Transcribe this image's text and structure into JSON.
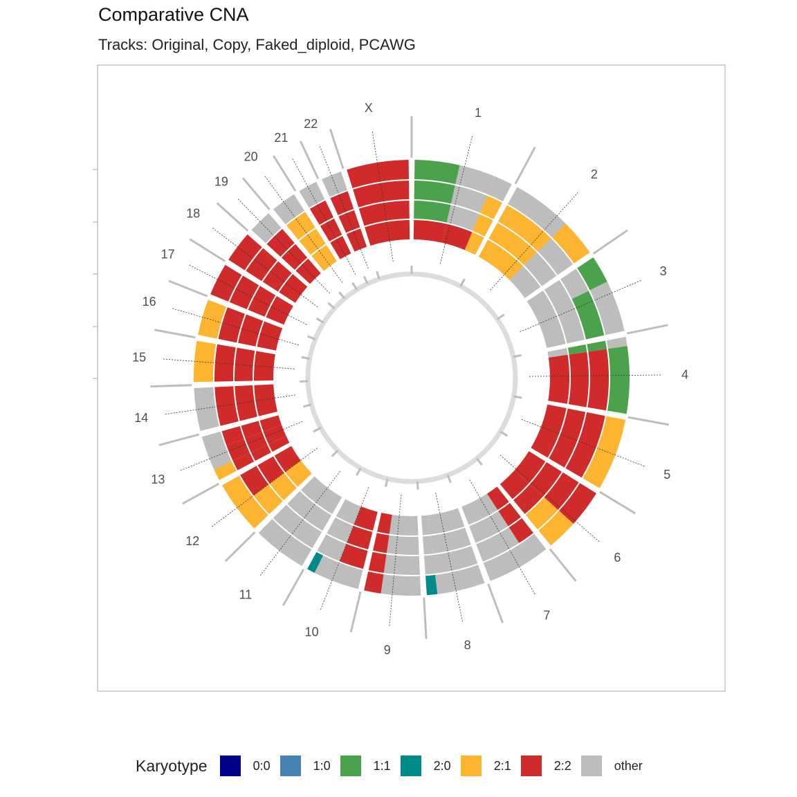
{
  "chart_data": {
    "type": "circos",
    "title": "Comparative CNA",
    "subtitle": "Tracks: Original, Copy, Faked_diploid, PCAWG",
    "tracks": [
      "Original",
      "Copy",
      "Faked_diploid",
      "PCAWG"
    ],
    "legend": {
      "title": "Karyotype",
      "position": "bottom",
      "entries": [
        {
          "label": "0:0",
          "color": "#00008B"
        },
        {
          "label": "1:0",
          "color": "#4682B4"
        },
        {
          "label": "1:1",
          "color": "#4CA24C"
        },
        {
          "label": "2:0",
          "color": "#008B8B"
        },
        {
          "label": "2:1",
          "color": "#FCB431"
        },
        {
          "label": "2:2",
          "color": "#D02B2B"
        },
        {
          "label": "other",
          "color": "#BDBDBD"
        }
      ]
    },
    "chromosomes": [
      {
        "name": "1",
        "length": 249.0,
        "segments": [
          {
            "start": 0,
            "end": 0.45,
            "tracks": [
              "2:2",
              "1:1",
              "1:1",
              "1:1"
            ]
          },
          {
            "start": 0.45,
            "end": 0.82,
            "tracks": [
              "2:2",
              "other",
              "other",
              "other"
            ]
          },
          {
            "start": 0.82,
            "end": 1.0,
            "tracks": [
              "2:1",
              "2:1",
              "2:1",
              "other"
            ]
          }
        ]
      },
      {
        "name": "2",
        "length": 243.0,
        "segments": [
          {
            "start": 0,
            "end": 0.62,
            "tracks": [
              "2:1",
              "2:1",
              "2:1",
              "other"
            ]
          },
          {
            "start": 0.62,
            "end": 1.0,
            "tracks": [
              "other",
              "other",
              "other",
              "2:1"
            ]
          }
        ]
      },
      {
        "name": "3",
        "length": 198.0,
        "segments": [
          {
            "start": 0,
            "end": 0.35,
            "tracks": [
              "other",
              "other",
              "other",
              "1:1"
            ]
          },
          {
            "start": 0.35,
            "end": 1.0,
            "tracks": [
              "other",
              "other",
              "1:1",
              "other"
            ]
          }
        ]
      },
      {
        "name": "4",
        "length": 191.0,
        "segments": [
          {
            "start": 0,
            "end": 0.12,
            "tracks": [
              "other",
              "1:1",
              "1:1",
              "other"
            ]
          },
          {
            "start": 0.12,
            "end": 1.0,
            "tracks": [
              "2:2",
              "2:2",
              "2:2",
              "1:1"
            ]
          }
        ]
      },
      {
        "name": "5",
        "length": 181.0,
        "segments": [
          {
            "start": 0,
            "end": 1.0,
            "tracks": [
              "2:2",
              "2:2",
              "2:2",
              "2:1"
            ]
          }
        ]
      },
      {
        "name": "6",
        "length": 171.0,
        "segments": [
          {
            "start": 0,
            "end": 0.55,
            "tracks": [
              "2:2",
              "2:2",
              "2:2",
              "2:2"
            ]
          },
          {
            "start": 0.55,
            "end": 1.0,
            "tracks": [
              "2:2",
              "2:2",
              "2:1",
              "2:1"
            ]
          }
        ]
      },
      {
        "name": "7",
        "length": 159.0,
        "segments": [
          {
            "start": 0,
            "end": 0.3,
            "tracks": [
              "2:2",
              "2:2",
              "2:2",
              "other"
            ]
          },
          {
            "start": 0.3,
            "end": 1.0,
            "tracks": [
              "other",
              "other",
              "other",
              "other"
            ]
          }
        ]
      },
      {
        "name": "8",
        "length": 146.0,
        "segments": [
          {
            "start": 0,
            "end": 0.82,
            "tracks": [
              "other",
              "other",
              "other",
              "other"
            ]
          },
          {
            "start": 0.82,
            "end": 1.0,
            "tracks": [
              "other",
              "other",
              "other",
              "2:0"
            ]
          }
        ]
      },
      {
        "name": "9",
        "length": 141.0,
        "segments": [
          {
            "start": 0,
            "end": 0.7,
            "tracks": [
              "other",
              "other",
              "other",
              "other"
            ]
          },
          {
            "start": 0.7,
            "end": 1.0,
            "tracks": [
              "2:2",
              "2:2",
              "2:2",
              "2:2"
            ]
          }
        ]
      },
      {
        "name": "10",
        "length": 135.0,
        "segments": [
          {
            "start": 0,
            "end": 0.5,
            "tracks": [
              "2:2",
              "2:2",
              "2:2",
              "other"
            ]
          },
          {
            "start": 0.5,
            "end": 0.85,
            "tracks": [
              "other",
              "other",
              "other",
              "other"
            ]
          },
          {
            "start": 0.85,
            "end": 1.0,
            "tracks": [
              "other",
              "other",
              "other",
              "2:0"
            ]
          }
        ]
      },
      {
        "name": "11",
        "length": 135.0,
        "segments": [
          {
            "start": 0,
            "end": 1.0,
            "tracks": [
              "other",
              "other",
              "other",
              "other"
            ]
          }
        ]
      },
      {
        "name": "12",
        "length": 133.0,
        "segments": [
          {
            "start": 0,
            "end": 0.5,
            "tracks": [
              "2:1",
              "2:1",
              "2:1",
              "2:1"
            ]
          },
          {
            "start": 0.5,
            "end": 1.0,
            "tracks": [
              "2:2",
              "2:2",
              "2:2",
              "2:1"
            ]
          }
        ]
      },
      {
        "name": "13",
        "length": 115.0,
        "segments": [
          {
            "start": 0,
            "end": 0.25,
            "tracks": [
              "2:2",
              "2:2",
              "2:2",
              "2:1"
            ]
          },
          {
            "start": 0.25,
            "end": 0.65,
            "tracks": [
              "2:2",
              "2:2",
              "2:2",
              "other"
            ]
          },
          {
            "start": 0.65,
            "end": 1.0,
            "tracks": [
              "2:2",
              "2:2",
              "2:2",
              "other"
            ]
          }
        ]
      },
      {
        "name": "14",
        "length": 107.0,
        "segments": [
          {
            "start": 0,
            "end": 1.0,
            "tracks": [
              "2:2",
              "2:2",
              "2:2",
              "other"
            ]
          }
        ]
      },
      {
        "name": "15",
        "length": 102.0,
        "segments": [
          {
            "start": 0,
            "end": 1.0,
            "tracks": [
              "2:2",
              "2:2",
              "2:2",
              "2:1"
            ]
          }
        ]
      },
      {
        "name": "16",
        "length": 90.0,
        "segments": [
          {
            "start": 0,
            "end": 1.0,
            "tracks": [
              "2:2",
              "2:2",
              "2:2",
              "2:1"
            ]
          }
        ]
      },
      {
        "name": "17",
        "length": 81.0,
        "segments": [
          {
            "start": 0,
            "end": 1.0,
            "tracks": [
              "2:2",
              "2:2",
              "2:2",
              "2:2"
            ]
          }
        ]
      },
      {
        "name": "18",
        "length": 78.0,
        "segments": [
          {
            "start": 0,
            "end": 1.0,
            "tracks": [
              "2:2",
              "2:2",
              "2:2",
              "2:2"
            ]
          }
        ]
      },
      {
        "name": "19",
        "length": 59.0,
        "segments": [
          {
            "start": 0,
            "end": 1.0,
            "tracks": [
              "2:2",
              "2:2",
              "2:2",
              "other"
            ]
          }
        ]
      },
      {
        "name": "20",
        "length": 63.0,
        "segments": [
          {
            "start": 0,
            "end": 1.0,
            "tracks": [
              "2:1",
              "2:1",
              "2:1",
              "other"
            ]
          }
        ]
      },
      {
        "name": "21",
        "length": 48.0,
        "segments": [
          {
            "start": 0,
            "end": 1.0,
            "tracks": [
              "2:2",
              "2:2",
              "2:2",
              "other"
            ]
          }
        ]
      },
      {
        "name": "22",
        "length": 51.0,
        "segments": [
          {
            "start": 0,
            "end": 1.0,
            "tracks": [
              "2:2",
              "2:2",
              "2:2",
              "other"
            ]
          }
        ]
      },
      {
        "name": "X",
        "length": 155.0,
        "segments": [
          {
            "start": 0,
            "end": 1.0,
            "tracks": [
              "2:2",
              "2:2",
              "2:2",
              "2:2"
            ]
          }
        ]
      }
    ]
  }
}
